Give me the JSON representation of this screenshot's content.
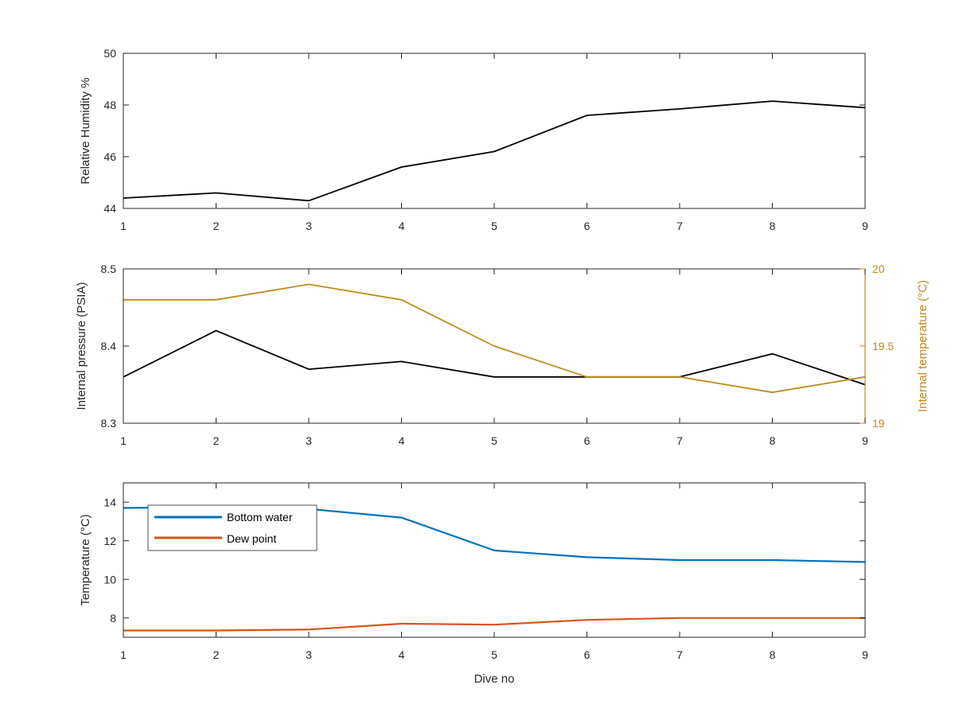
{
  "chart_data": [
    {
      "type": "line",
      "x": [
        1,
        2,
        3,
        4,
        5,
        6,
        7,
        8,
        9
      ],
      "xticks": [
        "1",
        "2",
        "3",
        "4",
        "5",
        "6",
        "7",
        "8",
        "9"
      ],
      "xlim": [
        1,
        9
      ],
      "ylim": [
        44,
        50
      ],
      "yticks": [
        "44",
        "46",
        "48",
        "50"
      ],
      "ylabel": "Relative Humidity %",
      "xlabel": "",
      "grid": false,
      "series": [
        {
          "values": [
            44.4,
            44.6,
            44.3,
            45.6,
            46.2,
            47.6,
            47.85,
            48.15,
            47.9
          ],
          "color": "#000000"
        }
      ]
    },
    {
      "type": "line",
      "x": [
        1,
        2,
        3,
        4,
        5,
        6,
        7,
        8,
        9
      ],
      "xticks": [
        "1",
        "2",
        "3",
        "4",
        "5",
        "6",
        "7",
        "8",
        "9"
      ],
      "xlim": [
        1,
        9
      ],
      "ylim": [
        8.3,
        8.5
      ],
      "yticks": [
        "8.3",
        "8.4",
        "8.5"
      ],
      "ylabel": "Internal pressure (PSIA)",
      "y2lim": [
        19,
        20
      ],
      "y2ticks": [
        "19",
        "19.5",
        "20"
      ],
      "y2label": "Internal temperature (°C)",
      "xlabel": "",
      "grid": false,
      "series": [
        {
          "axis": "left",
          "values": [
            8.36,
            8.42,
            8.37,
            8.38,
            8.36,
            8.36,
            8.36,
            8.39,
            8.35
          ],
          "color": "#000000"
        },
        {
          "axis": "right",
          "values": [
            19.8,
            19.8,
            19.9,
            19.8,
            19.5,
            19.3,
            19.3,
            19.2,
            19.3
          ],
          "color": "#c08a1c"
        }
      ]
    },
    {
      "type": "line",
      "x": [
        1,
        2,
        3,
        4,
        5,
        6,
        7,
        8,
        9
      ],
      "xticks": [
        "1",
        "2",
        "3",
        "4",
        "5",
        "6",
        "7",
        "8",
        "9"
      ],
      "xlim": [
        1,
        9
      ],
      "ylim": [
        7,
        15
      ],
      "yticks": [
        "8",
        "10",
        "12",
        "14"
      ],
      "ylabel": "Temperature (°C)",
      "xlabel": "Dive no",
      "grid": false,
      "legend_position": "top-left",
      "series": [
        {
          "name": "Bottom water",
          "values": [
            13.7,
            13.75,
            13.65,
            13.2,
            11.5,
            11.15,
            11.0,
            11.0,
            10.9
          ],
          "color": "#0072bd"
        },
        {
          "name": "Dew point",
          "values": [
            7.35,
            7.35,
            7.4,
            7.7,
            7.65,
            7.9,
            8.0,
            8.0,
            8.0
          ],
          "color": "#d95319"
        }
      ]
    }
  ]
}
